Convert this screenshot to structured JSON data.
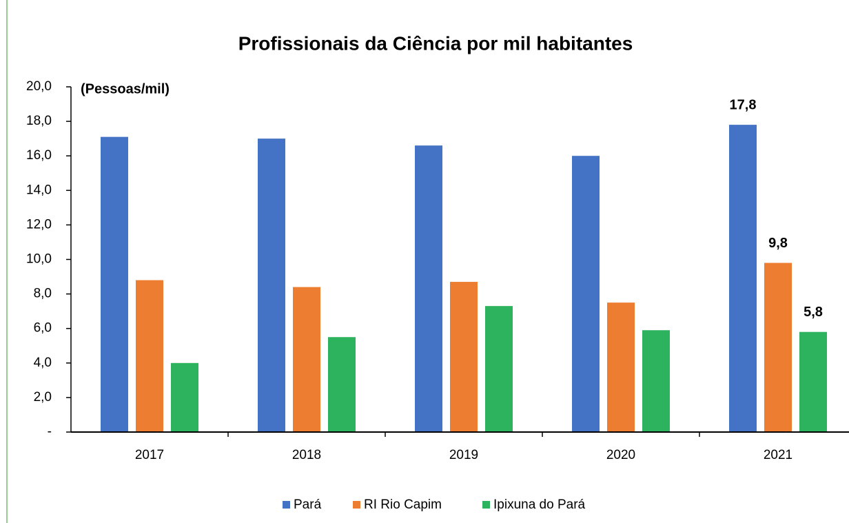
{
  "chart_data": {
    "type": "bar",
    "title": "Profissionais da Ciência por mil habitantes",
    "annotations": [
      "(Pessoas/mil)"
    ],
    "categories": [
      "2017",
      "2018",
      "2019",
      "2020",
      "2021"
    ],
    "series": [
      {
        "name": "Pará",
        "color": "#4472c4",
        "values": [
          17.1,
          17.0,
          16.6,
          16.0,
          17.8
        ],
        "value_labels": [
          null,
          null,
          null,
          null,
          "17,8"
        ]
      },
      {
        "name": "RI Rio Capim",
        "color": "#ed7d31",
        "values": [
          8.8,
          8.4,
          8.7,
          7.5,
          9.8
        ],
        "value_labels": [
          null,
          null,
          null,
          null,
          "9,8"
        ]
      },
      {
        "name": "Ipixuna do Pará",
        "color": "#2db35d",
        "values": [
          4.0,
          5.5,
          7.3,
          5.9,
          5.8
        ],
        "value_labels": [
          null,
          null,
          null,
          null,
          "5,8"
        ]
      }
    ],
    "ylim": [
      0,
      20
    ],
    "yticks": [
      {
        "value": 0,
        "label": "-"
      },
      {
        "value": 2,
        "label": "2,0"
      },
      {
        "value": 4,
        "label": "4,0"
      },
      {
        "value": 6,
        "label": "6,0"
      },
      {
        "value": 8,
        "label": "8,0"
      },
      {
        "value": 10,
        "label": "10,0"
      },
      {
        "value": 12,
        "label": "12,0"
      },
      {
        "value": 14,
        "label": "14,0"
      },
      {
        "value": 16,
        "label": "16,0"
      },
      {
        "value": 18,
        "label": "18,0"
      },
      {
        "value": 20,
        "label": "20,0"
      }
    ],
    "grid": false,
    "legend": "bottom"
  }
}
